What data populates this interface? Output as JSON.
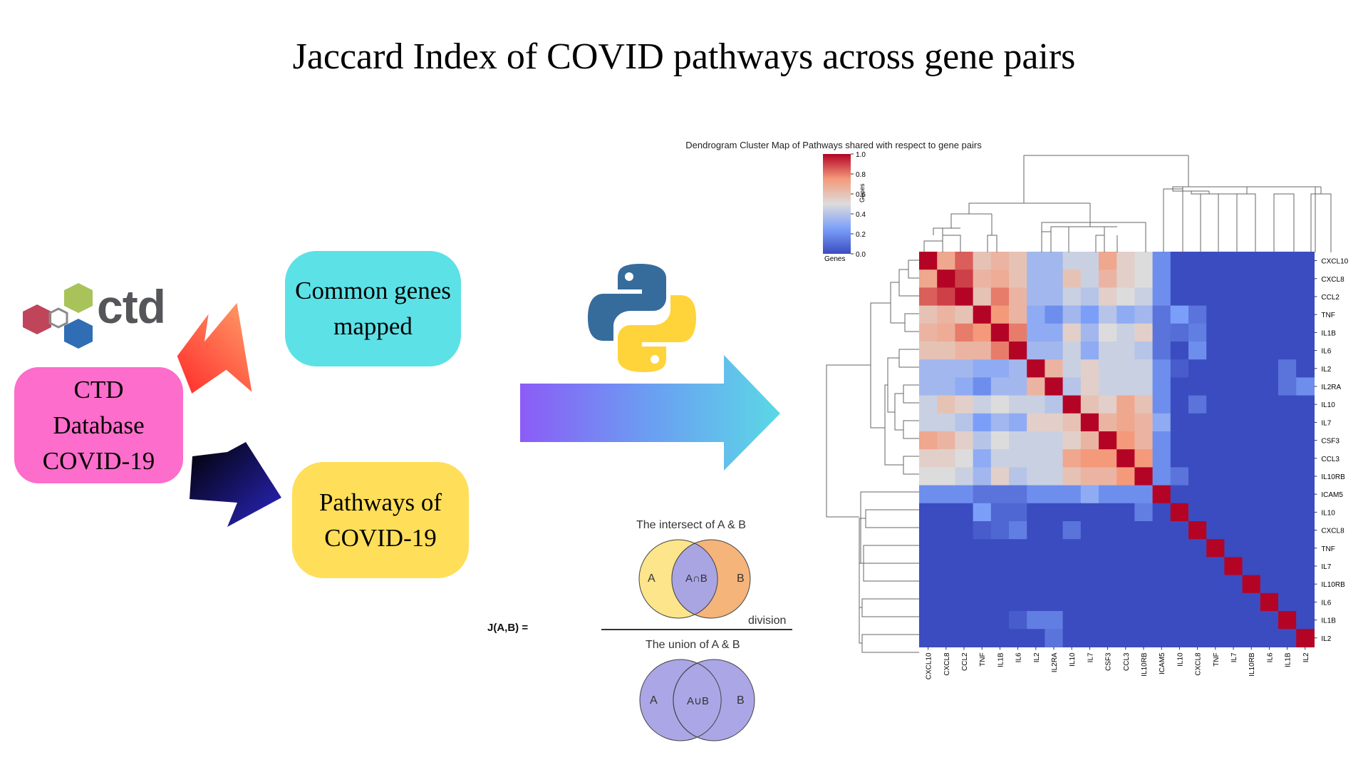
{
  "title": "Jaccard Index of COVID pathways across gene pairs",
  "ctd_logo": {
    "text": "ctd",
    "colors": [
      "#a9c35b",
      "#c0455b",
      "#2f6eb4"
    ]
  },
  "boxes": {
    "ctd": [
      "CTD",
      "Database",
      "COVID-19"
    ],
    "common_genes": [
      "Common genes",
      "mapped"
    ],
    "pathways": [
      "Pathways of",
      "COVID-19"
    ]
  },
  "jaccard": {
    "formula": "J(A,B)  =",
    "intersect_title": "The intersect of A & B",
    "union_title": "The union of A & B",
    "division": "division",
    "a": "A",
    "b": "B",
    "intersect_symbol": "A∩B",
    "union_symbol": "A∪B"
  },
  "chart_data": {
    "type": "heatmap",
    "title": "Dendrogram Cluster Map of Pathways shared with respect to gene pairs",
    "colorbar": {
      "label": "Genes",
      "ticks": [
        "0.0",
        "0.2",
        "0.4",
        "0.6",
        "0.8",
        "1.0"
      ],
      "range": [
        0,
        1
      ],
      "colormap": "coolwarm"
    },
    "row_labels": [
      "CXCL10",
      "CXCL8",
      "CCL2",
      "TNF",
      "IL1B",
      "IL6",
      "IL2",
      "IL2RA",
      "IL10",
      "IL7",
      "CSF3",
      "CCL3",
      "IL10RB",
      "ICAM5",
      "IL10",
      "CXCL8",
      "TNF",
      "IL7",
      "IL10RB",
      "IL6",
      "IL1B",
      "IL2"
    ],
    "col_labels": [
      "CXCL10",
      "CXCL8",
      "CCL2",
      "TNF",
      "IL1B",
      "IL6",
      "IL2",
      "IL2RA",
      "IL10",
      "IL7",
      "CSF3",
      "CCL3",
      "IL10RB",
      "ICAM5",
      "IL10",
      "CXCL8",
      "TNF",
      "IL7",
      "IL10RB",
      "IL6",
      "IL1B",
      "IL2"
    ],
    "values": [
      [
        1.0,
        0.7,
        0.85,
        0.6,
        0.65,
        0.6,
        0.35,
        0.35,
        0.45,
        0.45,
        0.7,
        0.55,
        0.5,
        0.2,
        0,
        0,
        0,
        0,
        0,
        0,
        0,
        0
      ],
      [
        0.7,
        1.0,
        0.9,
        0.65,
        0.68,
        0.6,
        0.35,
        0.35,
        0.6,
        0.45,
        0.65,
        0.55,
        0.5,
        0.2,
        0,
        0,
        0,
        0,
        0,
        0,
        0,
        0
      ],
      [
        0.85,
        0.9,
        1.0,
        0.6,
        0.8,
        0.65,
        0.35,
        0.35,
        0.45,
        0.4,
        0.55,
        0.5,
        0.45,
        0.2,
        0,
        0,
        0,
        0,
        0,
        0,
        0,
        0
      ],
      [
        0.6,
        0.65,
        0.6,
        1.0,
        0.75,
        0.65,
        0.3,
        0.2,
        0.35,
        0.25,
        0.4,
        0.3,
        0.35,
        0.12,
        0.25,
        0.12,
        0,
        0,
        0,
        0,
        0,
        0
      ],
      [
        0.65,
        0.68,
        0.8,
        0.75,
        1.0,
        0.8,
        0.3,
        0.3,
        0.55,
        0.35,
        0.5,
        0.45,
        0.55,
        0.12,
        0.1,
        0.15,
        0,
        0,
        0,
        0,
        0,
        0
      ],
      [
        0.6,
        0.6,
        0.65,
        0.65,
        0.8,
        1.0,
        0.35,
        0.35,
        0.45,
        0.3,
        0.45,
        0.45,
        0.4,
        0.12,
        0,
        0.2,
        0,
        0,
        0,
        0,
        0,
        0
      ],
      [
        0.35,
        0.35,
        0.35,
        0.3,
        0.3,
        0.35,
        1.0,
        0.65,
        0.45,
        0.55,
        0.45,
        0.45,
        0.45,
        0.2,
        0.05,
        0,
        0,
        0,
        0,
        0,
        0.12,
        0
      ],
      [
        0.35,
        0.35,
        0.3,
        0.2,
        0.35,
        0.35,
        0.65,
        1.0,
        0.4,
        0.55,
        0.45,
        0.45,
        0.45,
        0.2,
        0,
        0,
        0,
        0,
        0,
        0,
        0.12,
        0.2
      ],
      [
        0.45,
        0.6,
        0.55,
        0.45,
        0.5,
        0.45,
        0.45,
        0.4,
        1.0,
        0.6,
        0.55,
        0.7,
        0.6,
        0.2,
        0,
        0.12,
        0,
        0,
        0,
        0,
        0,
        0
      ],
      [
        0.45,
        0.45,
        0.4,
        0.25,
        0.35,
        0.3,
        0.55,
        0.55,
        0.6,
        1.0,
        0.65,
        0.7,
        0.65,
        0.3,
        0,
        0,
        0,
        0,
        0,
        0,
        0,
        0
      ],
      [
        0.7,
        0.65,
        0.55,
        0.4,
        0.5,
        0.45,
        0.45,
        0.45,
        0.55,
        0.65,
        1.0,
        0.75,
        0.65,
        0.2,
        0,
        0,
        0,
        0,
        0,
        0,
        0,
        0
      ],
      [
        0.55,
        0.55,
        0.5,
        0.3,
        0.45,
        0.45,
        0.45,
        0.45,
        0.7,
        0.75,
        0.75,
        1.0,
        0.75,
        0.2,
        0,
        0,
        0,
        0,
        0,
        0,
        0,
        0
      ],
      [
        0.5,
        0.5,
        0.45,
        0.35,
        0.55,
        0.4,
        0.45,
        0.45,
        0.6,
        0.65,
        0.65,
        0.75,
        1.0,
        0.2,
        0.12,
        0,
        0,
        0,
        0,
        0,
        0,
        0
      ],
      [
        0.2,
        0.2,
        0.2,
        0.12,
        0.12,
        0.12,
        0.2,
        0.2,
        0.2,
        0.3,
        0.2,
        0.2,
        0.2,
        1.0,
        0,
        0,
        0,
        0,
        0,
        0,
        0,
        0
      ],
      [
        0,
        0,
        0,
        0.25,
        0.08,
        0.08,
        0,
        0,
        0,
        0,
        0,
        0,
        0.15,
        0,
        1.0,
        0,
        0,
        0,
        0,
        0,
        0,
        0
      ],
      [
        0,
        0,
        0,
        0.05,
        0.08,
        0.15,
        0,
        0,
        0.12,
        0,
        0,
        0,
        0,
        0,
        0,
        1.0,
        0,
        0,
        0,
        0,
        0,
        0
      ],
      [
        0,
        0,
        0,
        0,
        0,
        0,
        0,
        0,
        0,
        0,
        0,
        0,
        0,
        0,
        0,
        0,
        1.0,
        0,
        0,
        0,
        0,
        0
      ],
      [
        0,
        0,
        0,
        0,
        0,
        0,
        0,
        0,
        0,
        0,
        0,
        0,
        0,
        0,
        0,
        0,
        0,
        1.0,
        0,
        0,
        0,
        0
      ],
      [
        0,
        0,
        0,
        0,
        0,
        0,
        0,
        0,
        0,
        0,
        0,
        0,
        0,
        0,
        0,
        0,
        0,
        0,
        1.0,
        0,
        0,
        0
      ],
      [
        0,
        0,
        0,
        0,
        0,
        0,
        0,
        0,
        0,
        0,
        0,
        0,
        0,
        0,
        0,
        0,
        0,
        0,
        0,
        1.0,
        0,
        0
      ],
      [
        0,
        0,
        0,
        0,
        0,
        0.05,
        0.15,
        0.15,
        0,
        0,
        0,
        0,
        0,
        0,
        0,
        0,
        0,
        0,
        0,
        0,
        1.0,
        0
      ],
      [
        0,
        0,
        0,
        0,
        0,
        0,
        0,
        0.12,
        0,
        0,
        0,
        0,
        0,
        0,
        0,
        0,
        0,
        0,
        0,
        0,
        0,
        1.0
      ]
    ]
  }
}
